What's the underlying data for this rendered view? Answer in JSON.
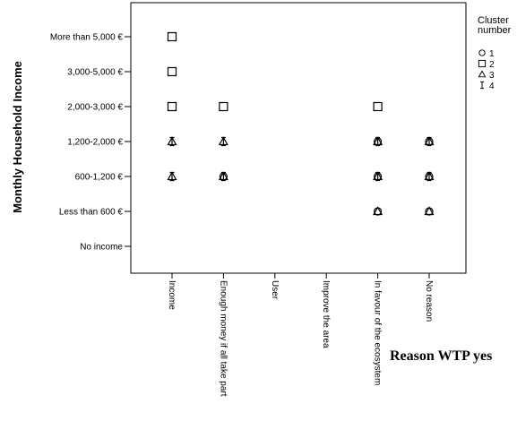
{
  "chart_data": {
    "type": "scatter",
    "ylabel": "Monthly Household Income",
    "xlabel": "Reason WTP yes",
    "y_categories": [
      "No income",
      "Less than 600 €",
      "600-1,200 €",
      "1,200-2,000 €",
      "2,000-3,000 €",
      "3,000-5,000 €",
      "More than 5,000 €"
    ],
    "x_categories": [
      "Income",
      "Enough money if all take part",
      "User",
      "Improve the area",
      "In favour of the ecosystem",
      "No reason"
    ],
    "legend": {
      "title_lines": [
        "Cluster",
        "number"
      ],
      "entries": [
        {
          "label": "1",
          "marker": "circle"
        },
        {
          "label": "2",
          "marker": "square"
        },
        {
          "label": "3",
          "marker": "triangle"
        },
        {
          "label": "4",
          "marker": "ibeam"
        }
      ]
    },
    "series": [
      {
        "name": "1",
        "marker": "circle",
        "points": [
          {
            "x": "Enough money if all take part",
            "y": "600-1,200 €"
          },
          {
            "x": "In favour of the ecosystem",
            "y": "Less than 600 €"
          },
          {
            "x": "In favour of the ecosystem",
            "y": "600-1,200 €"
          },
          {
            "x": "In favour of the ecosystem",
            "y": "1,200-2,000 €"
          },
          {
            "x": "No reason",
            "y": "Less than 600 €"
          },
          {
            "x": "No reason",
            "y": "600-1,200 €"
          },
          {
            "x": "No reason",
            "y": "1,200-2,000 €"
          }
        ]
      },
      {
        "name": "2",
        "marker": "square",
        "points": [
          {
            "x": "Income",
            "y": "More than 5,000 €"
          },
          {
            "x": "Income",
            "y": "3,000-5,000 €"
          },
          {
            "x": "Income",
            "y": "2,000-3,000 €"
          },
          {
            "x": "Enough money if all take part",
            "y": "2,000-3,000 €"
          },
          {
            "x": "In favour of the ecosystem",
            "y": "2,000-3,000 €"
          }
        ]
      },
      {
        "name": "3",
        "marker": "triangle",
        "points": [
          {
            "x": "Income",
            "y": "600-1,200 €"
          },
          {
            "x": "Income",
            "y": "1,200-2,000 €"
          },
          {
            "x": "Enough money if all take part",
            "y": "1,200-2,000 €"
          },
          {
            "x": "Enough money if all take part",
            "y": "600-1,200 €"
          },
          {
            "x": "In favour of the ecosystem",
            "y": "Less than 600 €"
          },
          {
            "x": "In favour of the ecosystem",
            "y": "600-1,200 €"
          },
          {
            "x": "In favour of the ecosystem",
            "y": "1,200-2,000 €"
          },
          {
            "x": "No reason",
            "y": "Less than 600 €"
          },
          {
            "x": "No reason",
            "y": "600-1,200 €"
          },
          {
            "x": "No reason",
            "y": "1,200-2,000 €"
          }
        ]
      },
      {
        "name": "4",
        "marker": "ibeam",
        "points": [
          {
            "x": "Income",
            "y": "600-1,200 €"
          },
          {
            "x": "Income",
            "y": "1,200-2,000 €"
          },
          {
            "x": "Enough money if all take part",
            "y": "1,200-2,000 €"
          },
          {
            "x": "Enough money if all take part",
            "y": "600-1,200 €"
          },
          {
            "x": "In favour of the ecosystem",
            "y": "600-1,200 €"
          },
          {
            "x": "In favour of the ecosystem",
            "y": "1,200-2,000 €"
          },
          {
            "x": "No reason",
            "y": "600-1,200 €"
          },
          {
            "x": "No reason",
            "y": "1,200-2,000 €"
          }
        ]
      }
    ]
  }
}
